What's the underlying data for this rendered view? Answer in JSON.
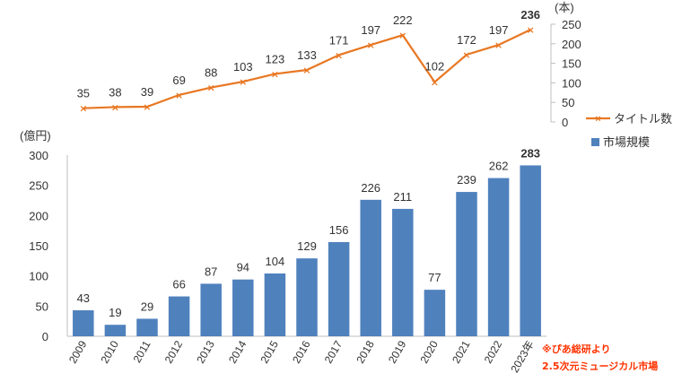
{
  "chart_data": [
    {
      "type": "line",
      "title": "",
      "unit_label": "(本)",
      "legend": "タイトル数",
      "legend_position": "right",
      "categories": [
        "2009",
        "2010",
        "2011",
        "2012",
        "2013",
        "2014",
        "2015",
        "2016",
        "2017",
        "2018",
        "2019",
        "2020",
        "2021",
        "2022",
        "2023年"
      ],
      "values": [
        35,
        38,
        39,
        69,
        88,
        103,
        123,
        133,
        171,
        197,
        222,
        102,
        172,
        197,
        236
      ],
      "ylim": [
        0,
        250
      ],
      "yticks": [
        0,
        50,
        100,
        150,
        200,
        250
      ],
      "axis_side": "right",
      "color": "#E87722",
      "highlight_color": "#E8A050"
    },
    {
      "type": "bar",
      "title": "",
      "unit_label": "(億円)",
      "legend": "市場規模",
      "legend_position": "right",
      "categories": [
        "2009",
        "2010",
        "2011",
        "2012",
        "2013",
        "2014",
        "2015",
        "2016",
        "2017",
        "2018",
        "2019",
        "2020",
        "2021",
        "2022",
        "2023年"
      ],
      "values": [
        43,
        19,
        29,
        66,
        87,
        94,
        104,
        129,
        156,
        226,
        211,
        77,
        239,
        262,
        283
      ],
      "ylim": [
        0,
        300
      ],
      "yticks": [
        0,
        50,
        100,
        150,
        200,
        250,
        300
      ],
      "axis_side": "left",
      "color": "#4F81BD",
      "highlight_color": "#4F81BD"
    }
  ],
  "source_note": {
    "line1": "※ぴあ総研より",
    "line2": "2.5次元ミュージカル市場",
    "color": "#FF3300"
  }
}
